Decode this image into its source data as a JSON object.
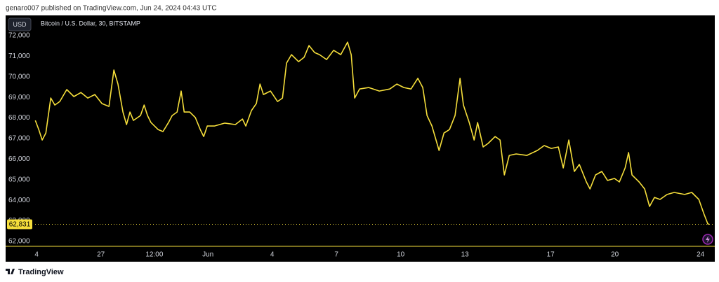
{
  "header": "genaro007 published on TradingView.com, Jun 24, 2024 04:43 UTC",
  "footer": "TradingView",
  "chart_data": {
    "type": "line",
    "title": "Bitcoin / U.S. Dollar, 30, BITSTAMP",
    "currency_label": "USD",
    "color": "#f5de3b",
    "grid": false,
    "x": [
      -0.06,
      0.1,
      0.26,
      0.43,
      0.66,
      0.85,
      1.08,
      1.41,
      1.74,
      2.07,
      2.39,
      2.72,
      3.05,
      3.38,
      3.61,
      3.8,
      4.03,
      4.2,
      4.36,
      4.52,
      4.85,
      5.02,
      5.18,
      5.34,
      5.67,
      5.9,
      6.16,
      6.33,
      6.56,
      6.75,
      6.89,
      7.15,
      7.41,
      7.64,
      7.8,
      7.97,
      8.3,
      8.79,
      9.28,
      9.61,
      9.77,
      10.03,
      10.26,
      10.43,
      10.59,
      10.92,
      11.25,
      11.48,
      11.67,
      11.9,
      12.23,
      12.49,
      12.72,
      12.98,
      13.21,
      13.54,
      13.87,
      14.2,
      14.52,
      14.69,
      14.85,
      15.08,
      15.51,
      16.0,
      16.49,
      16.82,
      17.15,
      17.48,
      17.8,
      18.03,
      18.23,
      18.46,
      18.79,
      19.02,
      19.28,
      19.54,
      19.77,
      19.93,
      20.2,
      20.43,
      20.59,
      20.85,
      21.08,
      21.41,
      21.64,
      21.84,
      22.07,
      22.39,
      22.89,
      23.38,
      23.7,
      24.03,
      24.36,
      24.59,
      24.85,
      25.11,
      25.34,
      25.67,
      25.84,
      26.1,
      26.39,
      26.66,
      26.98,
      27.21,
      27.48,
      27.64,
      27.8,
      28.13,
      28.39,
      28.62,
      28.85,
      29.11,
      29.44,
      29.77,
      30.26,
      30.59,
      30.92,
      31.15,
      31.34,
      31.41
    ],
    "values": [
      67880,
      67440,
      66930,
      67270,
      68970,
      68630,
      68800,
      69380,
      69040,
      69240,
      68970,
      69140,
      68700,
      68560,
      70330,
      69650,
      68290,
      67680,
      68290,
      67880,
      68120,
      68630,
      68120,
      67780,
      67440,
      67340,
      67780,
      68120,
      68290,
      69310,
      68290,
      68290,
      68020,
      67440,
      67100,
      67610,
      67610,
      67750,
      67680,
      67950,
      67610,
      68360,
      68700,
      69650,
      69140,
      69310,
      68800,
      68970,
      70670,
      71080,
      70740,
      70950,
      71520,
      71180,
      71080,
      70840,
      71290,
      71080,
      71690,
      71080,
      68970,
      69410,
      69480,
      69310,
      69410,
      69650,
      69480,
      69410,
      69930,
      69480,
      68120,
      67610,
      66420,
      67270,
      67440,
      68120,
      69930,
      68630,
      67780,
      66930,
      67780,
      66590,
      66760,
      67100,
      66930,
      65230,
      66180,
      66250,
      66180,
      66420,
      66660,
      66520,
      66590,
      65570,
      66930,
      65400,
      65740,
      64890,
      64550,
      65230,
      65400,
      64960,
      65060,
      64890,
      65570,
      66320,
      65230,
      64890,
      64550,
      63700,
      64140,
      64040,
      64280,
      64380,
      64280,
      64380,
      64040,
      63360,
      62850,
      62831
    ],
    "price_line": {
      "value": 62831,
      "label": "62,831"
    },
    "xlim": [
      -0.07,
      31.6
    ],
    "xticks": [
      {
        "value": 0,
        "label": "4"
      },
      {
        "value": 3,
        "label": "27"
      },
      {
        "value": 5.5,
        "label": "12:00"
      },
      {
        "value": 8,
        "label": "Jun"
      },
      {
        "value": 11,
        "label": "4"
      },
      {
        "value": 14,
        "label": "7"
      },
      {
        "value": 17,
        "label": "10"
      },
      {
        "value": 20,
        "label": "13"
      },
      {
        "value": 24,
        "label": "17"
      },
      {
        "value": 27,
        "label": "20"
      },
      {
        "value": 31,
        "label": "24"
      }
    ],
    "ylim": [
      61760,
      72920
    ],
    "yticks": [
      {
        "value": 62000,
        "label": "62,000"
      },
      {
        "value": 63000,
        "label": "63,000"
      },
      {
        "value": 64000,
        "label": "64,000"
      },
      {
        "value": 65000,
        "label": "65,000"
      },
      {
        "value": 66000,
        "label": "66,000"
      },
      {
        "value": 67000,
        "label": "67,000"
      },
      {
        "value": 68000,
        "label": "68,000"
      },
      {
        "value": 69000,
        "label": "69,000"
      },
      {
        "value": 70000,
        "label": "70,000"
      },
      {
        "value": 71000,
        "label": "71,000"
      },
      {
        "value": 72000,
        "label": "72,000"
      }
    ]
  }
}
